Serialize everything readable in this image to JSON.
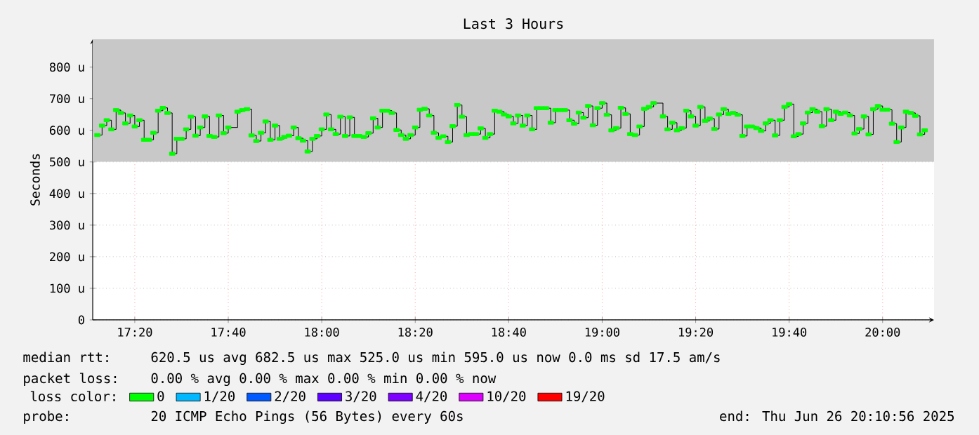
{
  "chart_data": {
    "type": "step",
    "title": "Last 3 Hours",
    "ylabel": "Seconds",
    "xlim": [
      "2025-06-26T17:11",
      "2025-06-26T20:11"
    ],
    "xticks": [
      {
        "value": "2025-06-26T17:20",
        "label": "17:20"
      },
      {
        "value": "2025-06-26T17:40",
        "label": "17:40"
      },
      {
        "value": "2025-06-26T18:00",
        "label": "18:00"
      },
      {
        "value": "2025-06-26T18:20",
        "label": "18:20"
      },
      {
        "value": "2025-06-26T18:40",
        "label": "18:40"
      },
      {
        "value": "2025-06-26T19:00",
        "label": "19:00"
      },
      {
        "value": "2025-06-26T19:20",
        "label": "19:20"
      },
      {
        "value": "2025-06-26T19:40",
        "label": "19:40"
      },
      {
        "value": "2025-06-26T20:00",
        "label": "20:00"
      }
    ],
    "ylim": [
      0,
      888
    ],
    "yticks": [
      0,
      {
        "value": 100,
        "label": "100 u"
      },
      {
        "value": 200,
        "label": "200 u"
      },
      {
        "value": 300,
        "label": "300 u"
      },
      {
        "value": 400,
        "label": "400 u"
      },
      {
        "value": 500,
        "label": "500 u"
      },
      {
        "value": 600,
        "label": "600 u"
      },
      {
        "value": 700,
        "label": "700 u"
      },
      {
        "value": 800,
        "label": "800 u"
      }
    ],
    "grid": true,
    "marker": "square",
    "legend": "bottom",
    "legend_title": "loss color:",
    "bands": [
      {
        "axis": "y",
        "from": 500,
        "to": 888,
        "color": "#c8c8c8"
      }
    ],
    "x": [
      "2025-06-26T17:12",
      "2025-06-26T17:13",
      "2025-06-26T17:14",
      "2025-06-26T17:15",
      "2025-06-26T17:16",
      "2025-06-26T17:17",
      "2025-06-26T17:18",
      "2025-06-26T17:19",
      "2025-06-26T17:20",
      "2025-06-26T17:21",
      "2025-06-26T17:22",
      "2025-06-26T17:23",
      "2025-06-26T17:24",
      "2025-06-26T17:25",
      "2025-06-26T17:26",
      "2025-06-26T17:27",
      "2025-06-26T17:28",
      "2025-06-26T17:29",
      "2025-06-26T17:30",
      "2025-06-26T17:31",
      "2025-06-26T17:32",
      "2025-06-26T17:33",
      "2025-06-26T17:34",
      "2025-06-26T17:35",
      "2025-06-26T17:36",
      "2025-06-26T17:37",
      "2025-06-26T17:38",
      "2025-06-26T17:39",
      "2025-06-26T17:40",
      "2025-06-26T17:42",
      "2025-06-26T17:43",
      "2025-06-26T17:44",
      "2025-06-26T17:45",
      "2025-06-26T17:46",
      "2025-06-26T17:47",
      "2025-06-26T17:48",
      "2025-06-26T17:49",
      "2025-06-26T17:50",
      "2025-06-26T17:51",
      "2025-06-26T17:52",
      "2025-06-26T17:53",
      "2025-06-26T17:54",
      "2025-06-26T17:55",
      "2025-06-26T17:56",
      "2025-06-26T17:57",
      "2025-06-26T17:58",
      "2025-06-26T17:59",
      "2025-06-26T18:00",
      "2025-06-26T18:01",
      "2025-06-26T18:02",
      "2025-06-26T18:03",
      "2025-06-26T18:04",
      "2025-06-26T18:05",
      "2025-06-26T18:06",
      "2025-06-26T18:07",
      "2025-06-26T18:08",
      "2025-06-26T18:09",
      "2025-06-26T18:10",
      "2025-06-26T18:11",
      "2025-06-26T18:12",
      "2025-06-26T18:13",
      "2025-06-26T18:14",
      "2025-06-26T18:15",
      "2025-06-26T18:16",
      "2025-06-26T18:17",
      "2025-06-26T18:18",
      "2025-06-26T18:19",
      "2025-06-26T18:20",
      "2025-06-26T18:21",
      "2025-06-26T18:22",
      "2025-06-26T18:23",
      "2025-06-26T18:24",
      "2025-06-26T18:25",
      "2025-06-26T18:26",
      "2025-06-26T18:27",
      "2025-06-26T18:28",
      "2025-06-26T18:29",
      "2025-06-26T18:30",
      "2025-06-26T18:31",
      "2025-06-26T18:32",
      "2025-06-26T18:33",
      "2025-06-26T18:34",
      "2025-06-26T18:35",
      "2025-06-26T18:36",
      "2025-06-26T18:37",
      "2025-06-26T18:38",
      "2025-06-26T18:39",
      "2025-06-26T18:40",
      "2025-06-26T18:41",
      "2025-06-26T18:42",
      "2025-06-26T18:43",
      "2025-06-26T18:44",
      "2025-06-26T18:45",
      "2025-06-26T18:46",
      "2025-06-26T18:47",
      "2025-06-26T18:48",
      "2025-06-26T18:49",
      "2025-06-26T18:50",
      "2025-06-26T18:51",
      "2025-06-26T18:52",
      "2025-06-26T18:53",
      "2025-06-26T18:54",
      "2025-06-26T18:55",
      "2025-06-26T18:56",
      "2025-06-26T18:57",
      "2025-06-26T18:58",
      "2025-06-26T18:59",
      "2025-06-26T19:00",
      "2025-06-26T19:01",
      "2025-06-26T19:02",
      "2025-06-26T19:03",
      "2025-06-26T19:04",
      "2025-06-26T19:05",
      "2025-06-26T19:06",
      "2025-06-26T19:07",
      "2025-06-26T19:08",
      "2025-06-26T19:09",
      "2025-06-26T19:10",
      "2025-06-26T19:11",
      "2025-06-26T19:13",
      "2025-06-26T19:14",
      "2025-06-26T19:15",
      "2025-06-26T19:16",
      "2025-06-26T19:17",
      "2025-06-26T19:18",
      "2025-06-26T19:19",
      "2025-06-26T19:20",
      "2025-06-26T19:21",
      "2025-06-26T19:22",
      "2025-06-26T19:23",
      "2025-06-26T19:24",
      "2025-06-26T19:25",
      "2025-06-26T19:26",
      "2025-06-26T19:27",
      "2025-06-26T19:28",
      "2025-06-26T19:29",
      "2025-06-26T19:30",
      "2025-06-26T19:31",
      "2025-06-26T19:32",
      "2025-06-26T19:33",
      "2025-06-26T19:34",
      "2025-06-26T19:35",
      "2025-06-26T19:36",
      "2025-06-26T19:37",
      "2025-06-26T19:38",
      "2025-06-26T19:39",
      "2025-06-26T19:40",
      "2025-06-26T19:41",
      "2025-06-26T19:42",
      "2025-06-26T19:43",
      "2025-06-26T19:44",
      "2025-06-26T19:45",
      "2025-06-26T19:46",
      "2025-06-26T19:47",
      "2025-06-26T19:48",
      "2025-06-26T19:49",
      "2025-06-26T19:50",
      "2025-06-26T19:51",
      "2025-06-26T19:52",
      "2025-06-26T19:53",
      "2025-06-26T19:54",
      "2025-06-26T19:55",
      "2025-06-26T19:56",
      "2025-06-26T19:57",
      "2025-06-26T19:58",
      "2025-06-26T19:59",
      "2025-06-26T20:00",
      "2025-06-26T20:01",
      "2025-06-26T20:02",
      "2025-06-26T20:03",
      "2025-06-26T20:04",
      "2025-06-26T20:05",
      "2025-06-26T20:06",
      "2025-06-26T20:07",
      "2025-06-26T20:08",
      "2025-06-26T20:09"
    ],
    "series": [
      {
        "name": "0",
        "color": "#00ff00",
        "values": [
          585,
          615,
          632,
          603,
          664,
          655,
          622,
          647,
          612,
          632,
          570,
          570,
          592,
          662,
          671,
          655,
          526,
          573,
          573,
          603,
          643,
          583,
          609,
          644,
          582,
          579,
          647,
          591,
          609,
          659,
          664,
          667,
          584,
          566,
          592,
          628,
          570,
          615,
          573,
          579,
          583,
          609,
          575,
          567,
          533,
          573,
          582,
          603,
          650,
          603,
          588,
          643,
          582,
          641,
          582,
          582,
          579,
          591,
          638,
          609,
          662,
          662,
          655,
          601,
          585,
          573,
          585,
          609,
          665,
          668,
          647,
          592,
          576,
          581,
          563,
          613,
          680,
          643,
          585,
          588,
          588,
          606,
          576,
          588,
          662,
          659,
          650,
          644,
          622,
          647,
          615,
          647,
          603,
          670,
          670,
          670,
          624,
          664,
          664,
          664,
          632,
          621,
          656,
          640,
          677,
          616,
          670,
          686,
          649,
          600,
          607,
          671,
          652,
          588,
          585,
          612,
          668,
          674,
          686,
          644,
          603,
          624,
          600,
          607,
          662,
          644,
          615,
          674,
          630,
          637,
          604,
          650,
          667,
          652,
          655,
          649,
          582,
          612,
          612,
          607,
          598,
          622,
          632,
          584,
          632,
          674,
          683,
          581,
          588,
          622,
          656,
          667,
          659,
          613,
          667,
          632,
          659,
          652,
          656,
          647,
          590,
          604,
          644,
          587,
          667,
          677,
          665,
          665,
          621,
          563,
          609,
          659,
          655,
          646,
          587,
          600
        ]
      },
      {
        "name": "1/20",
        "color": "#00b8ff",
        "values": [
          null,
          null,
          null,
          null,
          null,
          null,
          null,
          null,
          null,
          null,
          null,
          null,
          null,
          null,
          null,
          null,
          null,
          null,
          null,
          null,
          null,
          null,
          null,
          null,
          null,
          null,
          null,
          null,
          null,
          null,
          null,
          null,
          null,
          null,
          null,
          null,
          null,
          null,
          null,
          null,
          null,
          null,
          null,
          null,
          null,
          null,
          null,
          null,
          null,
          null,
          null,
          null,
          null,
          null,
          null,
          null,
          null,
          null,
          null,
          null,
          null,
          null,
          null,
          null,
          null,
          null,
          null,
          null,
          null,
          null,
          null,
          null,
          null,
          null,
          null,
          null,
          null,
          null,
          null,
          null,
          null,
          null,
          null,
          null,
          null,
          null,
          null,
          null,
          null,
          null,
          null,
          null,
          null,
          null,
          null,
          null,
          null,
          null,
          null,
          null,
          null,
          null,
          null,
          null,
          null,
          null,
          null,
          null,
          null,
          null,
          null,
          null,
          null,
          null,
          null,
          null,
          null,
          null,
          null,
          null,
          null,
          null,
          null,
          null,
          null,
          null,
          null,
          null,
          null,
          null,
          null,
          null,
          null,
          null,
          null,
          null,
          null,
          null,
          null,
          null,
          null,
          null,
          null,
          null,
          null,
          null,
          null,
          null,
          null,
          null,
          null,
          null,
          null,
          null,
          null,
          null,
          null,
          null,
          null,
          null,
          null,
          null,
          null,
          null,
          null,
          null,
          null,
          null,
          null,
          null,
          null,
          null,
          null,
          null,
          null,
          null
        ]
      },
      {
        "name": "2/20",
        "color": "#0059ff",
        "values": [
          null,
          null,
          null,
          null,
          null,
          null,
          null,
          null,
          null,
          null,
          null,
          null,
          null,
          null,
          null,
          null,
          null,
          null,
          null,
          null,
          null,
          null,
          null,
          null,
          null,
          null,
          null,
          null,
          null,
          null,
          null,
          null,
          null,
          null,
          null,
          null,
          null,
          null,
          null,
          null,
          null,
          null,
          null,
          null,
          null,
          null,
          null,
          null,
          null,
          null,
          null,
          null,
          null,
          null,
          null,
          null,
          null,
          null,
          null,
          null,
          null,
          null,
          null,
          null,
          null,
          null,
          null,
          null,
          null,
          null,
          null,
          null,
          null,
          null,
          null,
          null,
          null,
          null,
          null,
          null,
          null,
          null,
          null,
          null,
          null,
          null,
          null,
          null,
          null,
          null,
          null,
          null,
          null,
          null,
          null,
          null,
          null,
          null,
          null,
          null,
          null,
          null,
          null,
          null,
          null,
          null,
          null,
          null,
          null,
          null,
          null,
          null,
          null,
          null,
          null,
          null,
          null,
          null,
          null,
          null,
          null,
          null,
          null,
          null,
          null,
          null,
          null,
          null,
          null,
          null,
          null,
          null,
          null,
          null,
          null,
          null,
          null,
          null,
          null,
          null,
          null,
          null,
          null,
          null,
          null,
          null,
          null,
          null,
          null,
          null,
          null,
          null,
          null,
          null,
          null,
          null,
          null,
          null,
          null,
          null,
          null,
          null,
          null,
          null,
          null,
          null,
          null,
          null,
          null,
          null,
          null,
          null,
          null,
          null,
          null,
          null
        ]
      },
      {
        "name": "3/20",
        "color": "#5e00ff",
        "values": [
          null,
          null,
          null,
          null,
          null,
          null,
          null,
          null,
          null,
          null,
          null,
          null,
          null,
          null,
          null,
          null,
          null,
          null,
          null,
          null,
          null,
          null,
          null,
          null,
          null,
          null,
          null,
          null,
          null,
          null,
          null,
          null,
          null,
          null,
          null,
          null,
          null,
          null,
          null,
          null,
          null,
          null,
          null,
          null,
          null,
          null,
          null,
          null,
          null,
          null,
          null,
          null,
          null,
          null,
          null,
          null,
          null,
          null,
          null,
          null,
          null,
          null,
          null,
          null,
          null,
          null,
          null,
          null,
          null,
          null,
          null,
          null,
          null,
          null,
          null,
          null,
          null,
          null,
          null,
          null,
          null,
          null,
          null,
          null,
          null,
          null,
          null,
          null,
          null,
          null,
          null,
          null,
          null,
          null,
          null,
          null,
          null,
          null,
          null,
          null,
          null,
          null,
          null,
          null,
          null,
          null,
          null,
          null,
          null,
          null,
          null,
          null,
          null,
          null,
          null,
          null,
          null,
          null,
          null,
          null,
          null,
          null,
          null,
          null,
          null,
          null,
          null,
          null,
          null,
          null,
          null,
          null,
          null,
          null,
          null,
          null,
          null,
          null,
          null,
          null,
          null,
          null,
          null,
          null,
          null,
          null,
          null,
          null,
          null,
          null,
          null,
          null,
          null,
          null,
          null,
          null,
          null,
          null,
          null,
          null,
          null,
          null,
          null,
          null,
          null,
          null,
          null,
          null,
          null,
          null,
          null,
          null,
          null,
          null,
          null,
          null
        ]
      },
      {
        "name": "4/20",
        "color": "#7e00ff",
        "values": [
          null,
          null,
          null,
          null,
          null,
          null,
          null,
          null,
          null,
          null,
          null,
          null,
          null,
          null,
          null,
          null,
          null,
          null,
          null,
          null,
          null,
          null,
          null,
          null,
          null,
          null,
          null,
          null,
          null,
          null,
          null,
          null,
          null,
          null,
          null,
          null,
          null,
          null,
          null,
          null,
          null,
          null,
          null,
          null,
          null,
          null,
          null,
          null,
          null,
          null,
          null,
          null,
          null,
          null,
          null,
          null,
          null,
          null,
          null,
          null,
          null,
          null,
          null,
          null,
          null,
          null,
          null,
          null,
          null,
          null,
          null,
          null,
          null,
          null,
          null,
          null,
          null,
          null,
          null,
          null,
          null,
          null,
          null,
          null,
          null,
          null,
          null,
          null,
          null,
          null,
          null,
          null,
          null,
          null,
          null,
          null,
          null,
          null,
          null,
          null,
          null,
          null,
          null,
          null,
          null,
          null,
          null,
          null,
          null,
          null,
          null,
          null,
          null,
          null,
          null,
          null,
          null,
          null,
          null,
          null,
          null,
          null,
          null,
          null,
          null,
          null,
          null,
          null,
          null,
          null,
          null,
          null,
          null,
          null,
          null,
          null,
          null,
          null,
          null,
          null,
          null,
          null,
          null,
          null,
          null,
          null,
          null,
          null,
          null,
          null,
          null,
          null,
          null,
          null,
          null,
          null,
          null,
          null,
          null,
          null,
          null,
          null,
          null,
          null,
          null,
          null,
          null,
          null,
          null,
          null,
          null,
          null,
          null,
          null,
          null,
          null
        ]
      },
      {
        "name": "10/20",
        "color": "#dd00ff",
        "values": [
          null,
          null,
          null,
          null,
          null,
          null,
          null,
          null,
          null,
          null,
          null,
          null,
          null,
          null,
          null,
          null,
          null,
          null,
          null,
          null,
          null,
          null,
          null,
          null,
          null,
          null,
          null,
          null,
          null,
          null,
          null,
          null,
          null,
          null,
          null,
          null,
          null,
          null,
          null,
          null,
          null,
          null,
          null,
          null,
          null,
          null,
          null,
          null,
          null,
          null,
          null,
          null,
          null,
          null,
          null,
          null,
          null,
          null,
          null,
          null,
          null,
          null,
          null,
          null,
          null,
          null,
          null,
          null,
          null,
          null,
          null,
          null,
          null,
          null,
          null,
          null,
          null,
          null,
          null,
          null,
          null,
          null,
          null,
          null,
          null,
          null,
          null,
          null,
          null,
          null,
          null,
          null,
          null,
          null,
          null,
          null,
          null,
          null,
          null,
          null,
          null,
          null,
          null,
          null,
          null,
          null,
          null,
          null,
          null,
          null,
          null,
          null,
          null,
          null,
          null,
          null,
          null,
          null,
          null,
          null,
          null,
          null,
          null,
          null,
          null,
          null,
          null,
          null,
          null,
          null,
          null,
          null,
          null,
          null,
          null,
          null,
          null,
          null,
          null,
          null,
          null,
          null,
          null,
          null,
          null,
          null,
          null,
          null,
          null,
          null,
          null,
          null,
          null,
          null,
          null,
          null,
          null,
          null,
          null,
          null,
          null,
          null,
          null,
          null,
          null,
          null,
          null,
          null,
          null,
          null,
          null,
          null,
          null,
          null,
          null,
          null
        ]
      },
      {
        "name": "19/20",
        "color": "#ff0000",
        "values": [
          null,
          null,
          null,
          null,
          null,
          null,
          null,
          null,
          null,
          null,
          null,
          null,
          null,
          null,
          null,
          null,
          null,
          null,
          null,
          null,
          null,
          null,
          null,
          null,
          null,
          null,
          null,
          null,
          null,
          null,
          null,
          null,
          null,
          null,
          null,
          null,
          null,
          null,
          null,
          null,
          null,
          null,
          null,
          null,
          null,
          null,
          null,
          null,
          null,
          null,
          null,
          null,
          null,
          null,
          null,
          null,
          null,
          null,
          null,
          null,
          null,
          null,
          null,
          null,
          null,
          null,
          null,
          null,
          null,
          null,
          null,
          null,
          null,
          null,
          null,
          null,
          null,
          null,
          null,
          null,
          null,
          null,
          null,
          null,
          null,
          null,
          null,
          null,
          null,
          null,
          null,
          null,
          null,
          null,
          null,
          null,
          null,
          null,
          null,
          null,
          null,
          null,
          null,
          null,
          null,
          null,
          null,
          null,
          null,
          null,
          null,
          null,
          null,
          null,
          null,
          null,
          null,
          null,
          null,
          null,
          null,
          null,
          null,
          null,
          null,
          null,
          null,
          null,
          null,
          null,
          null,
          null,
          null,
          null,
          null,
          null,
          null,
          null,
          null,
          null,
          null,
          null,
          null,
          null,
          null,
          null,
          null,
          null,
          null,
          null,
          null,
          null,
          null,
          null,
          null,
          null,
          null,
          null,
          null,
          null,
          null,
          null,
          null,
          null,
          null,
          null,
          null,
          null,
          null,
          null,
          null,
          null,
          null,
          null,
          null,
          null
        ]
      }
    ],
    "annotations": [
      "median rtt:",
      "620.5 us avg 682.5 us max 525.0 us min 595.0 us now 0.0 ms sd 17.5 am/s",
      "packet loss:",
      "0.00 % avg 0.00 % max 0.00 % min 0.00 % now",
      "probe:",
      "20 ICMP Echo Pings (56 Bytes) every 60s",
      "end: Thu Jun 26 20:10:56 2025"
    ]
  }
}
